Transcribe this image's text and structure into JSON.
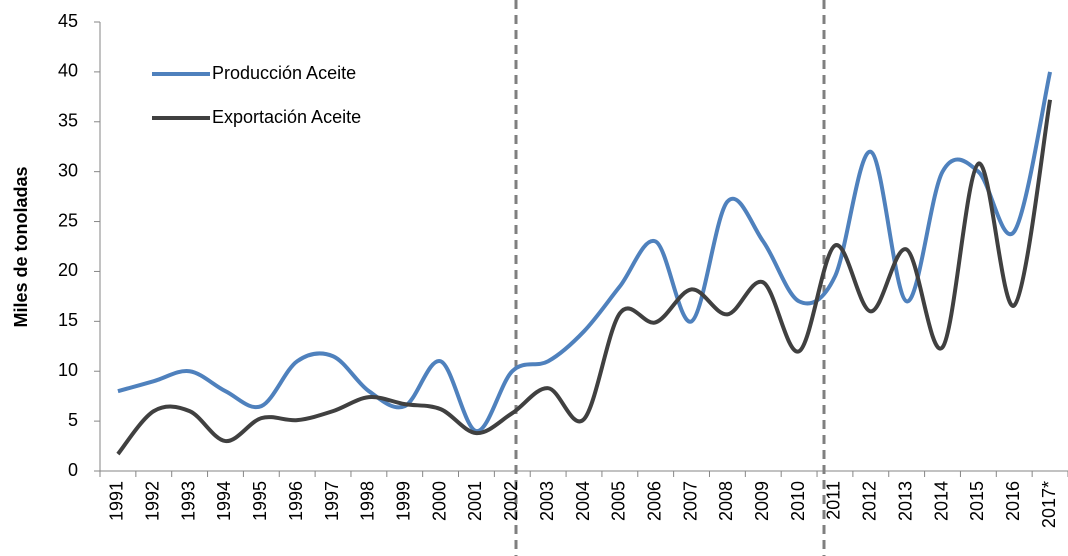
{
  "chart_data": {
    "type": "line",
    "y_label": "Miles de tonoladas",
    "categories": [
      "1991",
      "1992",
      "1993",
      "1994",
      "1995",
      "1996",
      "1997",
      "1998",
      "1999",
      "2000",
      "2001",
      "2002",
      "2003",
      "2004",
      "2005",
      "2006",
      "2007",
      "2008",
      "2009",
      "2010",
      "2011",
      "2012",
      "2013",
      "2014",
      "2015",
      "2016",
      "2017*"
    ],
    "series": [
      {
        "name": "Producción Aceite",
        "color": "#4f81bd",
        "values": [
          8,
          9,
          10,
          8,
          6.5,
          11,
          11.5,
          8,
          6.5,
          11,
          4,
          10,
          11,
          14,
          18.5,
          23,
          15,
          27,
          23,
          17,
          19.5,
          32,
          17,
          30,
          30,
          24,
          40
        ]
      },
      {
        "name": "Exportación Aceite",
        "color": "#404040",
        "values": [
          1.7,
          6,
          6,
          3,
          5.3,
          5.1,
          6,
          7.4,
          6.7,
          6.2,
          3.8,
          5.8,
          8.3,
          5.2,
          15.8,
          14.9,
          18.2,
          15.7,
          18.9,
          12,
          22.6,
          16,
          22.2,
          12.4,
          30.8,
          16.6,
          37.2
        ]
      }
    ],
    "ylim": [
      0,
      45
    ],
    "yticks": [
      0,
      5,
      10,
      15,
      20,
      25,
      30,
      35,
      40,
      45
    ],
    "grid": false,
    "smooth": true,
    "legend": "upper-left"
  }
}
